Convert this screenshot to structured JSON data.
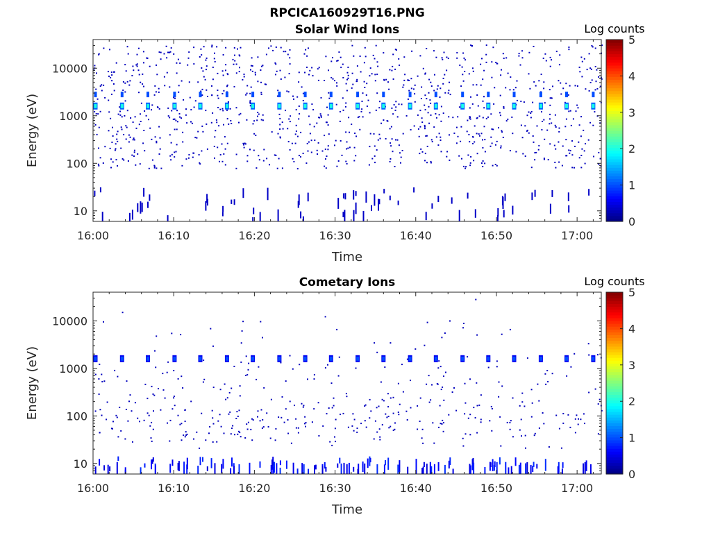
{
  "figure": {
    "title": "RPCICA160929T16.PNG"
  },
  "chart_data": [
    {
      "type": "heatmap",
      "title": "Solar Wind Ions",
      "xlabel": "Time",
      "ylabel": "Energy (eV)",
      "x_ticks": [
        "16:00",
        "16:10",
        "16:20",
        "16:30",
        "16:40",
        "16:50",
        "17:00"
      ],
      "y_ticks": [
        "10",
        "100",
        "1000",
        "10000"
      ],
      "y_scale": "log",
      "ylim": [
        6,
        40000
      ],
      "xlim_minutes_after_1600": [
        0,
        63
      ],
      "colorbar": {
        "label": "Log counts",
        "ticks": [
          "0",
          "1",
          "2",
          "3",
          "4",
          "5"
        ],
        "range": [
          0,
          5
        ],
        "colormap": "jet"
      },
      "features": {
        "sweep_peaks": {
          "energy_ev": 1600,
          "minutes": [
            0.3,
            3.6,
            6.8,
            10.1,
            13.3,
            16.6,
            19.8,
            23.1,
            26.3,
            29.5,
            32.8,
            36.0,
            39.3,
            42.5,
            45.8,
            49.0,
            52.2,
            55.5,
            58.7,
            62.0
          ],
          "log_counts": 2.0
        },
        "secondary_band": {
          "energy_ev": 2800,
          "log_counts": 1.0
        },
        "background_log_counts": 0.3
      }
    },
    {
      "type": "heatmap",
      "title": "Cometary Ions",
      "xlabel": "Time",
      "ylabel": "Energy (eV)",
      "x_ticks": [
        "16:00",
        "16:10",
        "16:20",
        "16:30",
        "16:40",
        "16:50",
        "17:00"
      ],
      "y_ticks": [
        "10",
        "100",
        "1000",
        "10000"
      ],
      "y_scale": "log",
      "ylim": [
        6,
        40000
      ],
      "xlim_minutes_after_1600": [
        0,
        63
      ],
      "colorbar": {
        "label": "Log counts",
        "ticks": [
          "0",
          "1",
          "2",
          "3",
          "4",
          "5"
        ],
        "range": [
          0,
          5
        ],
        "colormap": "jet"
      },
      "features": {
        "sweep_peaks": {
          "energy_ev": 1600,
          "minutes": [
            0.3,
            3.6,
            6.8,
            10.1,
            13.3,
            16.6,
            19.8,
            23.1,
            26.3,
            29.5,
            32.8,
            36.0,
            39.3,
            42.5,
            45.8,
            49.0,
            52.2,
            55.5,
            58.7,
            62.0
          ],
          "log_counts": 1.0
        },
        "low_energy_band": {
          "energy_ev": 10,
          "log_counts": 0.8
        },
        "background_log_counts": 0.3
      }
    }
  ]
}
